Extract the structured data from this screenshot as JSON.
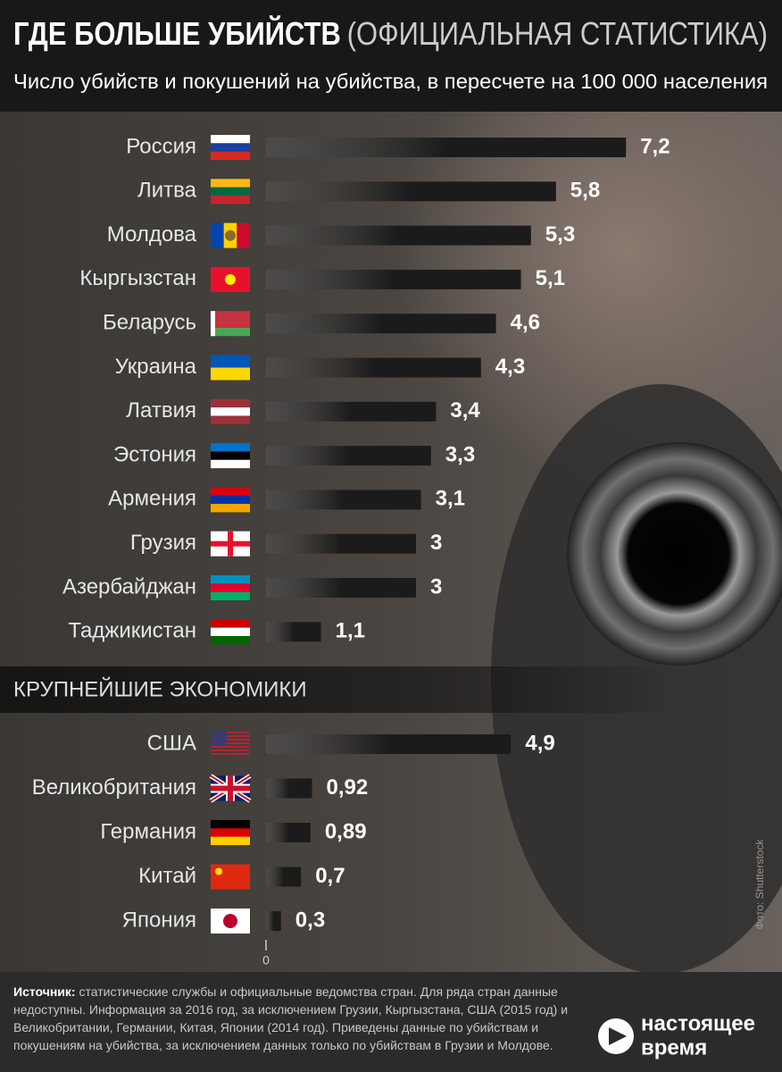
{
  "chart_data": [
    {
      "type": "bar",
      "orientation": "horizontal",
      "title": "ГДЕ БОЛЬШЕ УБИЙСТВ",
      "title_note": "(ОФИЦИАЛЬНАЯ СТАТИСТИКА)",
      "subtitle": "Число убийств и покушений на убийства, в пересчете на 100 000 населения",
      "categories": [
        "Россия",
        "Литва",
        "Молдова",
        "Кыргызстан",
        "Беларусь",
        "Украина",
        "Латвия",
        "Эстония",
        "Армения",
        "Грузия",
        "Азербайджан",
        "Таджикистан"
      ],
      "values": [
        7.2,
        5.8,
        5.3,
        5.1,
        4.6,
        4.3,
        3.4,
        3.3,
        3.1,
        3,
        3,
        1.1
      ],
      "value_labels": [
        "7,2",
        "5,8",
        "5,3",
        "5,1",
        "4,6",
        "4,3",
        "3,4",
        "3,3",
        "3,1",
        "3",
        "3",
        "1,1"
      ],
      "color": "#1b1b1b",
      "xlim": [
        0,
        10
      ]
    },
    {
      "type": "bar",
      "orientation": "horizontal",
      "title": "КРУПНЕЙШИЕ ЭКОНОМИКИ",
      "categories": [
        "США",
        "Великобритания",
        "Германия",
        "Китай",
        "Япония"
      ],
      "values": [
        4.9,
        0.92,
        0.89,
        0.7,
        0.3
      ],
      "value_labels": [
        "4,9",
        "0,92",
        "0,89",
        "0,7",
        "0,3"
      ],
      "color": "#1b1b1b",
      "xlim": [
        0,
        10
      ],
      "xticks": [
        0
      ]
    }
  ],
  "source": {
    "label": "Источник:",
    "text": "статистические службы и официальные ведомства стран. Для ряда стран данные недоступны. Информация за 2016 год, за исключением Грузии, Кыргызстана, США (2015 год) и Великобритании, Германии, Китая, Японии (2014 год). Приведены данные по убийствам и покушениям на убийства, за исключением данных только по убийствам в Грузии и Молдове."
  },
  "photo_credit": "Фото: Shutterstock",
  "logo": {
    "line1": "настоящее",
    "line2": "время"
  }
}
